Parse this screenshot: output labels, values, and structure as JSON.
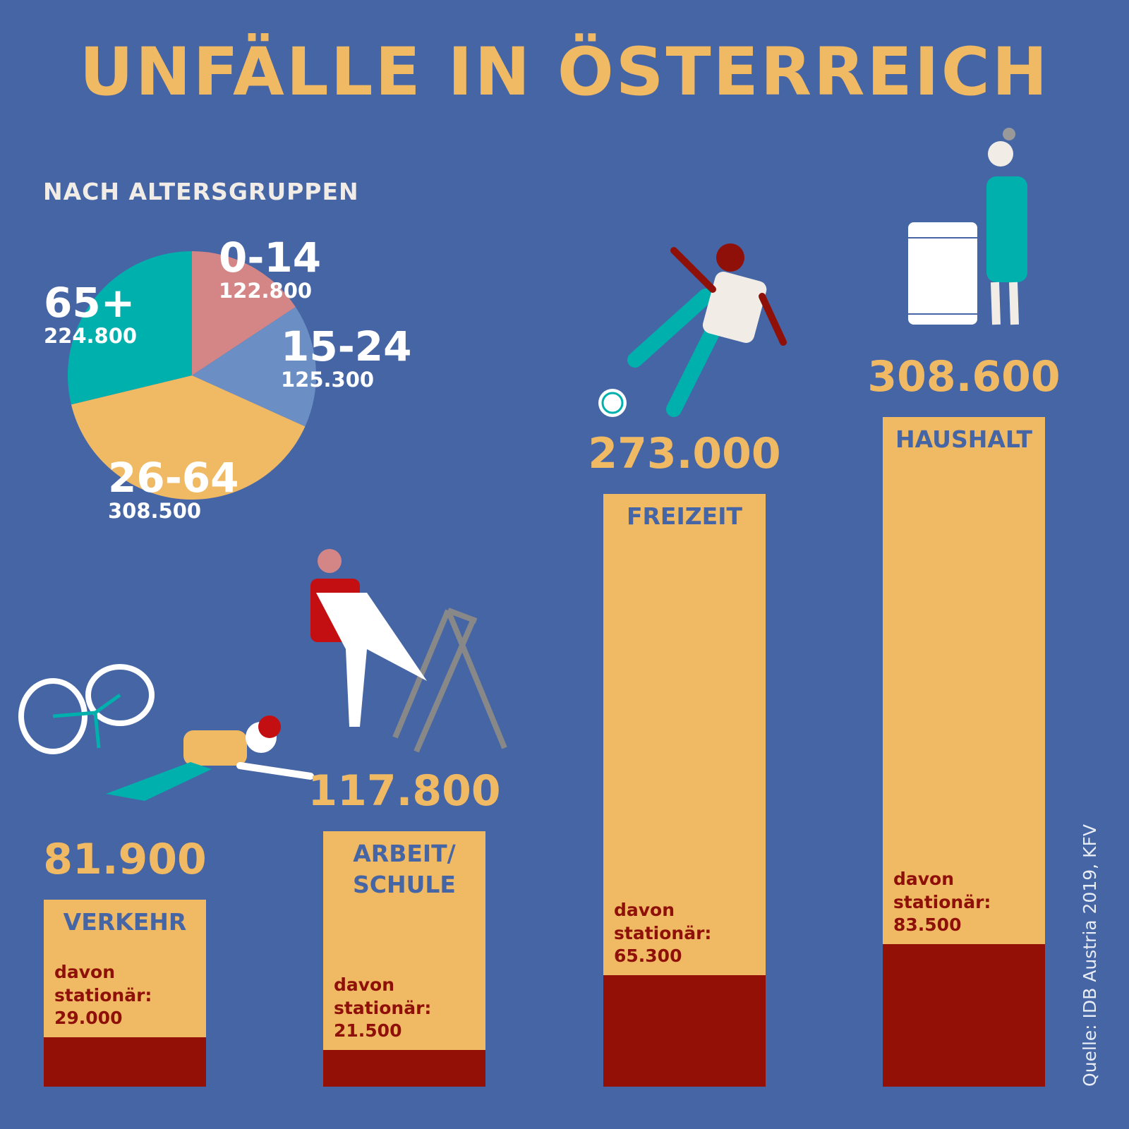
{
  "title": "UNFÄLLE IN ÖSTERREICH",
  "source": "Quelle: IDB Austria 2019, KFV",
  "chart_data": [
    {
      "type": "pie",
      "title": "NACH ALTERSGRUPPEN",
      "slices": [
        {
          "label": "0-14",
          "value": 122800,
          "value_label": "122.800",
          "color": "#D48686"
        },
        {
          "label": "15-24",
          "value": 125300,
          "value_label": "125.300",
          "color": "#6B8EC4"
        },
        {
          "label": "26-64",
          "value": 308500,
          "value_label": "308.500",
          "color": "#F0B964"
        },
        {
          "label": "65+",
          "value": 224800,
          "value_label": "224.800",
          "color": "#00B0AD"
        }
      ]
    },
    {
      "type": "bar",
      "stacked_note": "davon stationär:",
      "colors": {
        "total": "#F0B964",
        "inpatient": "#931006",
        "label": "#4565A5",
        "value": "#F0B964",
        "note": "#8E1008"
      },
      "categories": [
        "VERKEHR",
        "ARBEIT/\nSCHULE",
        "FREIZEIT",
        "HAUSHALT"
      ],
      "series": [
        {
          "values": [
            81900,
            117800,
            273000,
            308600
          ],
          "value_labels": [
            "81.900",
            "117.800",
            "273.000",
            "308.600"
          ]
        },
        {
          "name": "davon stationär:",
          "values": [
            29000,
            21500,
            65300,
            83500
          ],
          "value_labels": [
            "29.000",
            "21.500",
            "65.300",
            "83.500"
          ]
        }
      ]
    }
  ]
}
